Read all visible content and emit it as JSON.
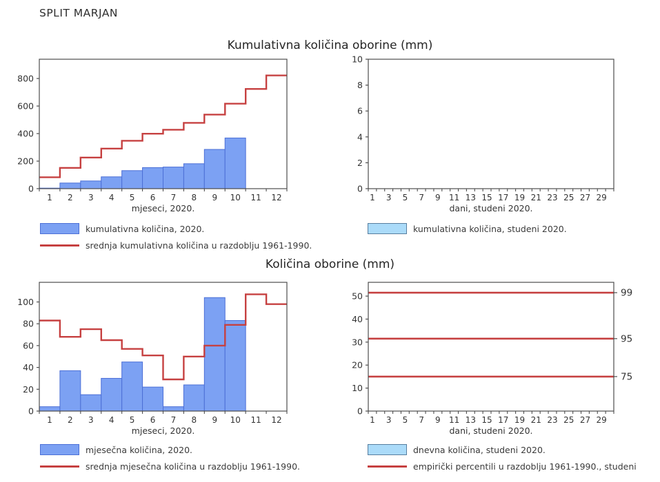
{
  "page": {
    "title": "SPLIT MARJAN"
  },
  "sections": {
    "top_title": "Kumulativna količina oborine (mm)",
    "bottom_title": "Količina oborine (mm)"
  },
  "colors": {
    "bar_blue_fill": "#7ca1f3",
    "bar_blue_edge": "#4c6fd6",
    "light_blue_fill": "#abdbf9",
    "light_blue_edge": "#567d9e",
    "line_red": "#c64040",
    "axis": "#4d4d4d",
    "text": "#333333"
  },
  "chart_data": [
    {
      "name": "cumulative-monthly",
      "type": "bar",
      "title": "Kumulativna količina oborine (mm)",
      "xlabel": "mjeseci, 2020.",
      "x_categories": [
        "1",
        "2",
        "3",
        "4",
        "5",
        "6",
        "7",
        "8",
        "9",
        "10",
        "11",
        "12"
      ],
      "x_label_step": 1,
      "ylim": [
        0,
        940
      ],
      "yticks": [
        0,
        200,
        400,
        600,
        800
      ],
      "grid": false,
      "bars": {
        "name": "kumulativna količina, 2020.",
        "values": [
          4,
          41,
          56,
          86,
          131,
          153,
          157,
          181,
          285,
          368,
          null,
          null
        ]
      },
      "step_line": {
        "name": "srednja kumulativna količina u razdoblju 1961-1990.",
        "values": [
          83,
          151,
          226,
          291,
          348,
          399,
          428,
          478,
          538,
          617,
          724,
          822
        ]
      },
      "legend": [
        {
          "swatch": "blue-box",
          "label": "kumulativna količina, 2020."
        },
        {
          "swatch": "red-line",
          "label": "srednja kumulativna količina u razdoblju 1961-1990."
        }
      ]
    },
    {
      "name": "cumulative-daily",
      "type": "bar",
      "title": "Kumulativna količina oborine (mm)",
      "xlabel": "dani, studeni 2020.",
      "x_categories": [
        "1",
        "2",
        "3",
        "4",
        "5",
        "6",
        "7",
        "8",
        "9",
        "10",
        "11",
        "12",
        "13",
        "14",
        "15",
        "16",
        "17",
        "18",
        "19",
        "20",
        "21",
        "22",
        "23",
        "24",
        "25",
        "26",
        "27",
        "28",
        "29",
        "30"
      ],
      "x_label_step": 2,
      "ylim": [
        0,
        10
      ],
      "yticks": [
        0,
        2,
        4,
        6,
        8,
        10
      ],
      "grid": false,
      "bars": {
        "name": "kumulativna količina, studeni 2020.",
        "values": []
      },
      "legend": [
        {
          "swatch": "lightblue-box",
          "label": "kumulativna količina, studeni 2020."
        }
      ]
    },
    {
      "name": "monthly-precipitation",
      "type": "bar",
      "title": "Količina oborine (mm)",
      "xlabel": "mjeseci, 2020.",
      "x_categories": [
        "1",
        "2",
        "3",
        "4",
        "5",
        "6",
        "7",
        "8",
        "9",
        "10",
        "11",
        "12"
      ],
      "x_label_step": 1,
      "ylim": [
        0,
        118
      ],
      "yticks": [
        0,
        20,
        40,
        60,
        80,
        100
      ],
      "grid": false,
      "bars": {
        "name": "mjesečna količina, 2020.",
        "values": [
          4,
          37,
          15,
          30,
          45,
          22,
          4,
          24,
          104,
          83,
          null,
          null
        ]
      },
      "step_line": {
        "name": "srednja mjesečna količina u razdoblju 1961-1990.",
        "values": [
          83,
          68,
          75,
          65,
          57,
          51,
          29,
          50,
          60,
          79,
          107,
          98
        ]
      },
      "legend": [
        {
          "swatch": "blue-box",
          "label": "mjesečna količina, 2020."
        },
        {
          "swatch": "red-line",
          "label": "srednja mjesečna količina u razdoblju 1961-1990."
        }
      ]
    },
    {
      "name": "daily-percentiles",
      "type": "line",
      "title": "Količina oborine (mm)",
      "xlabel": "dani, studeni 2020.",
      "x_categories": [
        "1",
        "2",
        "3",
        "4",
        "5",
        "6",
        "7",
        "8",
        "9",
        "10",
        "11",
        "12",
        "13",
        "14",
        "15",
        "16",
        "17",
        "18",
        "19",
        "20",
        "21",
        "22",
        "23",
        "24",
        "25",
        "26",
        "27",
        "28",
        "29",
        "30"
      ],
      "x_label_step": 2,
      "ylim": [
        0,
        56
      ],
      "yticks": [
        0,
        10,
        20,
        30,
        40,
        50
      ],
      "grid": false,
      "hlines": [
        {
          "y": 51.5,
          "label": "99"
        },
        {
          "y": 31.5,
          "label": "95"
        },
        {
          "y": 15,
          "label": "75"
        }
      ],
      "legend": [
        {
          "swatch": "lightblue-box",
          "label": "dnevna količina, studeni 2020."
        },
        {
          "swatch": "red-line",
          "label": "empirički percentili u razdoblju 1961-1990., studeni"
        }
      ]
    }
  ]
}
